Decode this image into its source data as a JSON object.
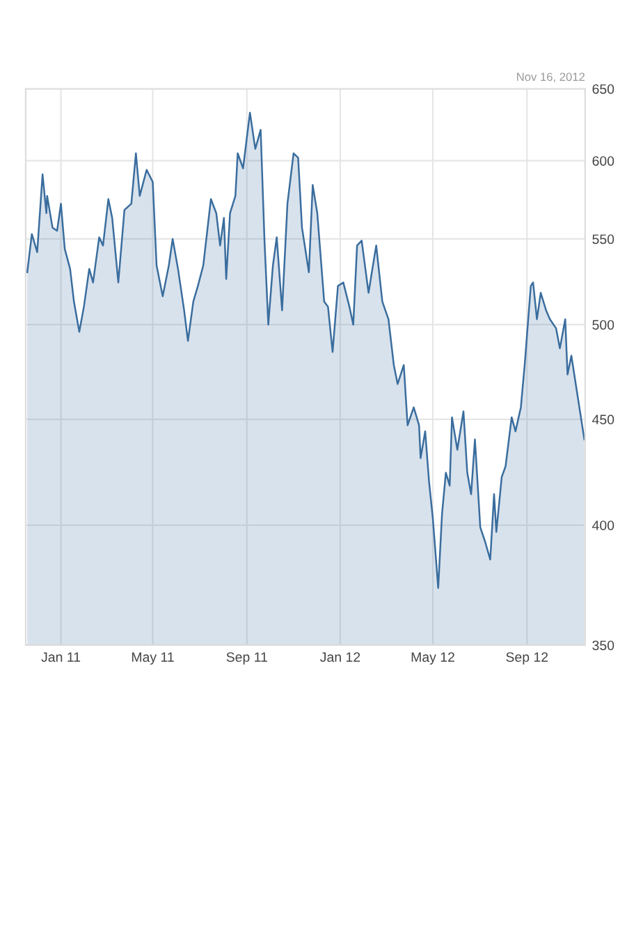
{
  "chart_data": {
    "type": "area",
    "annotations": [
      "Nov 16, 2012"
    ],
    "x": [
      "2010-11-18",
      "2010-11-24",
      "2010-12-01",
      "2010-12-08",
      "2010-12-13",
      "2010-12-14",
      "2010-12-21",
      "2010-12-27",
      "2011-01-01",
      "2011-01-06",
      "2011-01-13",
      "2011-01-18",
      "2011-01-25",
      "2011-01-31",
      "2011-02-07",
      "2011-02-12",
      "2011-02-20",
      "2011-02-25",
      "2011-03-04",
      "2011-03-09",
      "2011-03-17",
      "2011-03-25",
      "2011-04-03",
      "2011-04-09",
      "2011-04-14",
      "2011-04-23",
      "2011-05-01",
      "2011-05-06",
      "2011-05-14",
      "2011-05-22",
      "2011-05-27",
      "2011-06-03",
      "2011-06-11",
      "2011-06-16",
      "2011-06-23",
      "2011-06-29",
      "2011-07-06",
      "2011-07-16",
      "2011-07-23",
      "2011-07-28",
      "2011-08-02",
      "2011-08-05",
      "2011-08-10",
      "2011-08-17",
      "2011-08-20",
      "2011-08-27",
      "2011-09-05",
      "2011-09-12",
      "2011-09-19",
      "2011-09-24",
      "2011-09-29",
      "2011-10-05",
      "2011-10-10",
      "2011-10-17",
      "2011-10-24",
      "2011-11-01",
      "2011-11-07",
      "2011-11-12",
      "2011-11-21",
      "2011-11-26",
      "2011-12-02",
      "2011-12-11",
      "2011-12-16",
      "2011-12-22",
      "2011-12-29",
      "2012-01-05",
      "2012-01-13",
      "2012-01-18",
      "2012-01-23",
      "2012-01-29",
      "2012-02-07",
      "2012-02-12",
      "2012-02-17",
      "2012-02-25",
      "2012-03-04",
      "2012-03-11",
      "2012-03-16",
      "2012-03-24",
      "2012-03-29",
      "2012-04-06",
      "2012-04-13",
      "2012-04-15",
      "2012-04-21",
      "2012-04-26",
      "2012-05-01",
      "2012-05-08",
      "2012-05-13",
      "2012-05-18",
      "2012-05-23",
      "2012-05-26",
      "2012-06-02",
      "2012-06-10",
      "2012-06-15",
      "2012-06-20",
      "2012-06-25",
      "2012-07-02",
      "2012-07-08",
      "2012-07-15",
      "2012-07-20",
      "2012-07-23",
      "2012-07-30",
      "2012-08-04",
      "2012-08-12",
      "2012-08-17",
      "2012-08-24",
      "2012-08-29",
      "2012-09-06",
      "2012-09-09",
      "2012-09-14",
      "2012-09-19",
      "2012-09-26",
      "2012-10-01",
      "2012-10-09",
      "2012-10-14",
      "2012-10-21",
      "2012-10-24",
      "2012-10-29",
      "2012-11-15"
    ],
    "series": [
      {
        "color": "#3a6d9e",
        "values": [
          530,
          553,
          542,
          591,
          566,
          577,
          557,
          555,
          572,
          544,
          532,
          513,
          496,
          510,
          532,
          524,
          551,
          546,
          575,
          563,
          524,
          568,
          572,
          605,
          577,
          594,
          586,
          534,
          516,
          534,
          550,
          532,
          508,
          491,
          513,
          522,
          534,
          575,
          566,
          546,
          563,
          526,
          566,
          577,
          605,
          595,
          633,
          608,
          621,
          549,
          500,
          534,
          551,
          508,
          572,
          605,
          602,
          557,
          530,
          584,
          566,
          513,
          510,
          485,
          522,
          524,
          510,
          500,
          546,
          549,
          518,
          532,
          546,
          513,
          503,
          478,
          468,
          478,
          447,
          456,
          447,
          431,
          444,
          420,
          403,
          373,
          405,
          424,
          418,
          451,
          435,
          454,
          424,
          414,
          440,
          399,
          393,
          385,
          414,
          397,
          422,
          427,
          451,
          444,
          456,
          478,
          522,
          524,
          503,
          518,
          508,
          503,
          498,
          487,
          503,
          473,
          483,
          440
        ]
      }
    ],
    "log": true,
    "ylim": [
      350,
      650
    ],
    "yticks": [
      350,
      400,
      450,
      500,
      550,
      600,
      650
    ],
    "xlim": [
      "2010-11-16",
      "2012-11-16"
    ],
    "xticks": [
      {
        "value": "2011-01-01",
        "label": "Jan 11"
      },
      {
        "value": "2011-05-01",
        "label": "May 11"
      },
      {
        "value": "2011-09-01",
        "label": "Sep 11"
      },
      {
        "value": "2012-01-01",
        "label": "Jan 12"
      },
      {
        "value": "2012-05-01",
        "label": "May 12"
      },
      {
        "value": "2012-09-01",
        "label": "Sep 12"
      }
    ],
    "grid": true,
    "legend": false
  }
}
